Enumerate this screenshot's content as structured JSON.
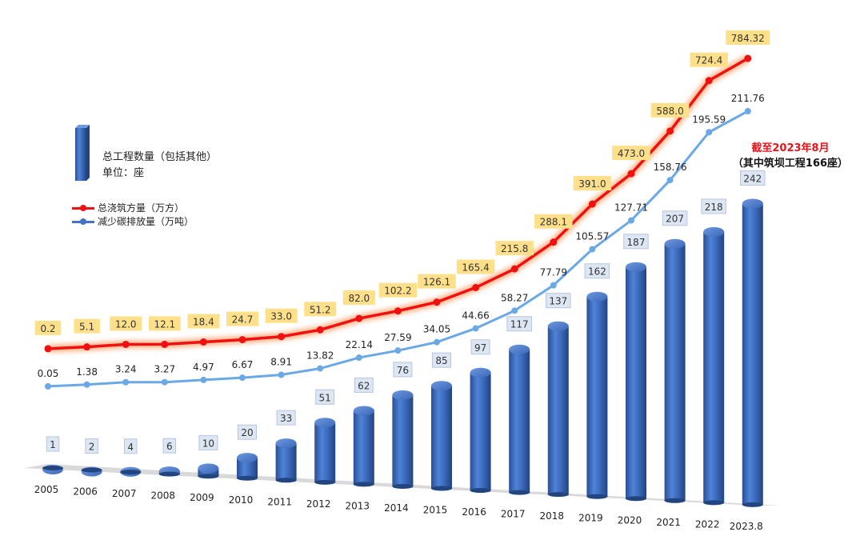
{
  "legend": {
    "bars_label": "总工程数量（包括其他）",
    "bars_unit": "单位：座",
    "concrete_label": "总浇筑方量（万方）",
    "carbon_label": "减少碳排放量（万吨）"
  },
  "note": {
    "line1": "截至2023年8月",
    "line2": "（其中筑坝工程166座）"
  },
  "colors": {
    "bar": "#3f6fc4",
    "concrete_line": "#f01010",
    "concrete_glow": "#ff7a2a",
    "concrete_label_bg": "#ffe08a",
    "carbon_line": "#6aa8e6",
    "bar_label_bg": "#dde6f3",
    "floor": "#d9d9d9"
  },
  "chart_data": {
    "type": "bar",
    "categories": [
      "2005",
      "2006",
      "2007",
      "2008",
      "2009",
      "2010",
      "2011",
      "2012",
      "2013",
      "2014",
      "2015",
      "2016",
      "2017",
      "2018",
      "2019",
      "2020",
      "2021",
      "2022",
      "2023.8"
    ],
    "series": [
      {
        "name": "总工程数量（包括其他）",
        "type": "bar",
        "values": [
          1,
          2,
          4,
          6,
          10,
          20,
          33,
          51,
          62,
          76,
          85,
          97,
          117,
          137,
          162,
          187,
          207,
          218,
          242
        ]
      },
      {
        "name": "总浇筑方量（万方）",
        "type": "line",
        "values": [
          "0.2",
          "5.1",
          "12.0",
          "12.1",
          "18.4",
          "24.7",
          "33.0",
          "51.2",
          "82.0",
          "102.2",
          "126.1",
          "165.4",
          "215.8",
          "288.1",
          "391.0",
          "473.0",
          "588.0",
          "724.4",
          "784.32"
        ]
      },
      {
        "name": "减少碳排放量（万吨）",
        "type": "line",
        "values": [
          "0.05",
          "1.38",
          "3.24",
          "3.27",
          "4.97",
          "6.67",
          "8.91",
          "13.82",
          "22.14",
          "27.59",
          "34.05",
          "44.66",
          "58.27",
          "77.79",
          "105.57",
          "127.71",
          "158.76",
          "195.59",
          "211.76"
        ]
      }
    ]
  }
}
